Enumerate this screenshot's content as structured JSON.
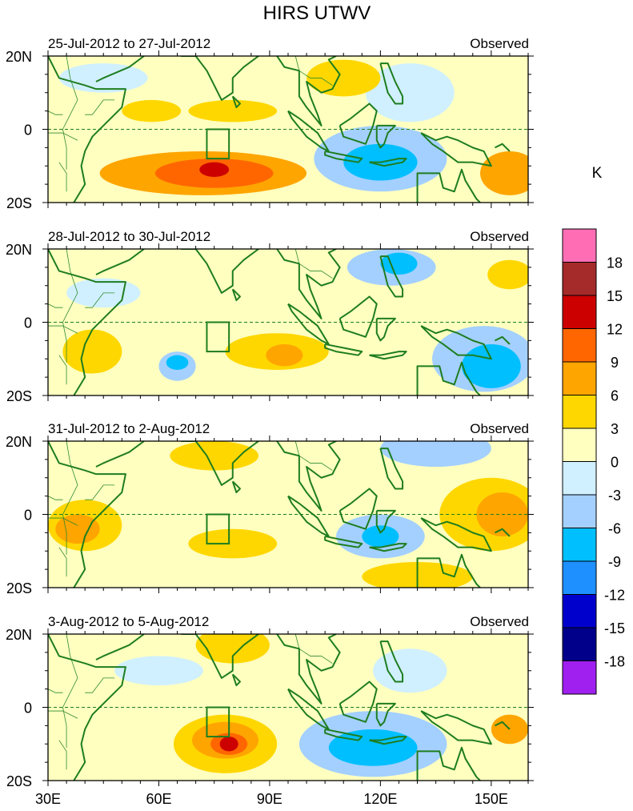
{
  "chart_data": {
    "type": "heatmap",
    "title": "HIRS UTWV",
    "units": "K",
    "lon_ticks": [
      "30E",
      "60E",
      "90E",
      "120E",
      "150E"
    ],
    "lon_values": [
      30,
      60,
      90,
      120,
      150
    ],
    "lon_range": [
      30,
      160
    ],
    "lat_ticks": [
      "20N",
      "0",
      "20S"
    ],
    "lat_values": [
      20,
      0,
      -20
    ],
    "lat_range": [
      -20,
      20
    ],
    "box_region": {
      "lon": [
        73,
        79
      ],
      "lat": [
        -8,
        0
      ]
    },
    "colorbar": {
      "labels": [
        "18",
        "15",
        "12",
        "9",
        "6",
        "3",
        "0",
        "-3",
        "-6",
        "-9",
        "-12",
        "-15",
        "-18"
      ],
      "colors": [
        "#ff6eb4",
        "#a52a2a",
        "#cd0000",
        "#ff6600",
        "#ffa500",
        "#ffd700",
        "#ffffc0",
        "#d0f0ff",
        "#a4d0ff",
        "#00bfff",
        "#1e90ff",
        "#0000cd",
        "#00008b",
        "#a020f0"
      ]
    },
    "panels": [
      {
        "date_range": "25-Jul-2012 to 27-Jul-2012",
        "label": "Observed",
        "blobs": [
          {
            "lon": 72,
            "lat": -12,
            "rx": 28,
            "ry": 6,
            "v": 6
          },
          {
            "lon": 75,
            "lat": -12,
            "rx": 16,
            "ry": 4,
            "v": 9
          },
          {
            "lon": 75,
            "lat": -11,
            "rx": 4,
            "ry": 2,
            "v": 12
          },
          {
            "lon": 120,
            "lat": -8,
            "rx": 18,
            "ry": 9,
            "v": -6
          },
          {
            "lon": 120,
            "lat": -9,
            "rx": 10,
            "ry": 5,
            "v": -9
          },
          {
            "lon": 128,
            "lat": 10,
            "rx": 12,
            "ry": 8,
            "v": -3
          },
          {
            "lon": 80,
            "lat": 5,
            "rx": 12,
            "ry": 3,
            "v": 3
          },
          {
            "lon": 155,
            "lat": -12,
            "rx": 8,
            "ry": 6,
            "v": 6
          },
          {
            "lon": 110,
            "lat": 14,
            "rx": 10,
            "ry": 5,
            "v": 3
          },
          {
            "lon": 45,
            "lat": 14,
            "rx": 12,
            "ry": 4,
            "v": -3
          },
          {
            "lon": 58,
            "lat": 5,
            "rx": 8,
            "ry": 3,
            "v": 3
          }
        ]
      },
      {
        "date_range": "28-Jul-2012 to 30-Jul-2012",
        "label": "Observed",
        "blobs": [
          {
            "lon": 65,
            "lat": -12,
            "rx": 5,
            "ry": 4,
            "v": -6
          },
          {
            "lon": 65,
            "lat": -11,
            "rx": 3,
            "ry": 2,
            "v": -9
          },
          {
            "lon": 92,
            "lat": -8,
            "rx": 14,
            "ry": 5,
            "v": 3
          },
          {
            "lon": 94,
            "lat": -9,
            "rx": 5,
            "ry": 3,
            "v": 6
          },
          {
            "lon": 148,
            "lat": -10,
            "rx": 14,
            "ry": 9,
            "v": -6
          },
          {
            "lon": 150,
            "lat": -12,
            "rx": 8,
            "ry": 6,
            "v": -9
          },
          {
            "lon": 123,
            "lat": 15,
            "rx": 12,
            "ry": 5,
            "v": -6
          },
          {
            "lon": 125,
            "lat": 16,
            "rx": 5,
            "ry": 3,
            "v": -9
          },
          {
            "lon": 155,
            "lat": 13,
            "rx": 6,
            "ry": 4,
            "v": 3
          },
          {
            "lon": 45,
            "lat": 8,
            "rx": 10,
            "ry": 4,
            "v": -3
          },
          {
            "lon": 42,
            "lat": -8,
            "rx": 8,
            "ry": 6,
            "v": 3
          }
        ]
      },
      {
        "date_range": "31-Jul-2012 to 2-Aug-2012",
        "label": "Observed",
        "blobs": [
          {
            "lon": 40,
            "lat": -3,
            "rx": 10,
            "ry": 7,
            "v": 3
          },
          {
            "lon": 38,
            "lat": -4,
            "rx": 6,
            "ry": 4,
            "v": 6
          },
          {
            "lon": 150,
            "lat": 0,
            "rx": 14,
            "ry": 10,
            "v": 3
          },
          {
            "lon": 153,
            "lat": 0,
            "rx": 7,
            "ry": 6,
            "v": 6
          },
          {
            "lon": 120,
            "lat": -6,
            "rx": 12,
            "ry": 6,
            "v": -6
          },
          {
            "lon": 120,
            "lat": -6,
            "rx": 5,
            "ry": 3,
            "v": -9
          },
          {
            "lon": 135,
            "lat": 18,
            "rx": 15,
            "ry": 5,
            "v": -6
          },
          {
            "lon": 130,
            "lat": -17,
            "rx": 15,
            "ry": 4,
            "v": 3
          },
          {
            "lon": 75,
            "lat": 16,
            "rx": 12,
            "ry": 4,
            "v": 3
          },
          {
            "lon": 80,
            "lat": -8,
            "rx": 12,
            "ry": 4,
            "v": 3
          }
        ]
      },
      {
        "date_range": "3-Aug-2012 to 5-Aug-2012",
        "label": "Observed",
        "blobs": [
          {
            "lon": 78,
            "lat": -10,
            "rx": 14,
            "ry": 8,
            "v": 3
          },
          {
            "lon": 78,
            "lat": -9,
            "rx": 9,
            "ry": 5,
            "v": 6
          },
          {
            "lon": 79,
            "lat": -10,
            "rx": 5,
            "ry": 3,
            "v": 9
          },
          {
            "lon": 79,
            "lat": -10,
            "rx": 2.5,
            "ry": 2,
            "v": 12
          },
          {
            "lon": 118,
            "lat": -10,
            "rx": 20,
            "ry": 9,
            "v": -6
          },
          {
            "lon": 118,
            "lat": -11,
            "rx": 12,
            "ry": 5,
            "v": -9
          },
          {
            "lon": 80,
            "lat": 17,
            "rx": 10,
            "ry": 5,
            "v": 3
          },
          {
            "lon": 155,
            "lat": -6,
            "rx": 5,
            "ry": 4,
            "v": 6
          },
          {
            "lon": 128,
            "lat": 10,
            "rx": 10,
            "ry": 6,
            "v": -3
          },
          {
            "lon": 60,
            "lat": 10,
            "rx": 12,
            "ry": 4,
            "v": -3
          }
        ]
      }
    ]
  }
}
